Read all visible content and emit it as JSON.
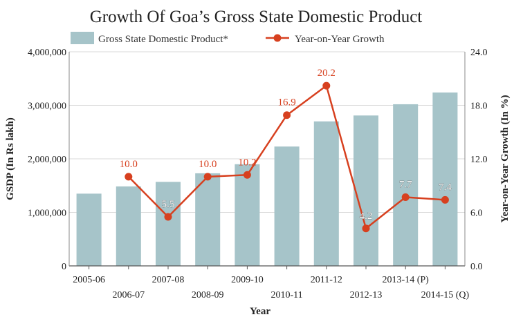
{
  "chart_data": {
    "type": "bar",
    "title": "Growth Of Goa’s Gross State Domestic Product",
    "xlabel": "Year",
    "ylabel": "GSDP (In Rs lakh)",
    "y2label": "Year-on-Year Growth (In %)",
    "categories": [
      "2005-06",
      "2006-07",
      "2007-08",
      "2008-09",
      "2009-10",
      "2010-11",
      "2011-12",
      "2012-13",
      "2013-14 (P)",
      "2014-15 (Q)"
    ],
    "ylim": [
      0,
      4000000
    ],
    "y2lim": [
      0,
      24
    ],
    "yticks": [
      "0",
      "1,000,000",
      "2,000,000",
      "3,000,000",
      "4,000,000"
    ],
    "y2ticks": [
      "0.0",
      "6.0",
      "12.0",
      "18.0",
      "24.0"
    ],
    "grid": true,
    "legend_position": "top",
    "series": [
      {
        "name": "Gross State Domestic Product*",
        "type": "bar",
        "axis": "left",
        "color": "#a6c4c9",
        "values": [
          1350000,
          1485000,
          1570000,
          1730000,
          1900000,
          2230000,
          2700000,
          2810000,
          3020000,
          3240000
        ]
      },
      {
        "name": "Year-on-Year Growth",
        "type": "line",
        "axis": "right",
        "color": "#d7401f",
        "values": [
          null,
          10.0,
          5.5,
          10.0,
          10.2,
          16.9,
          20.2,
          4.2,
          7.7,
          7.4
        ],
        "labels": [
          "",
          "10.0",
          "5.5",
          "10.0",
          "10.2",
          "16.9",
          "20.2",
          "4.2",
          "7.7",
          "7.4"
        ],
        "label_style": [
          "red",
          "red",
          "white",
          "red",
          "red",
          "red",
          "red",
          "white",
          "white",
          "white"
        ]
      }
    ]
  }
}
